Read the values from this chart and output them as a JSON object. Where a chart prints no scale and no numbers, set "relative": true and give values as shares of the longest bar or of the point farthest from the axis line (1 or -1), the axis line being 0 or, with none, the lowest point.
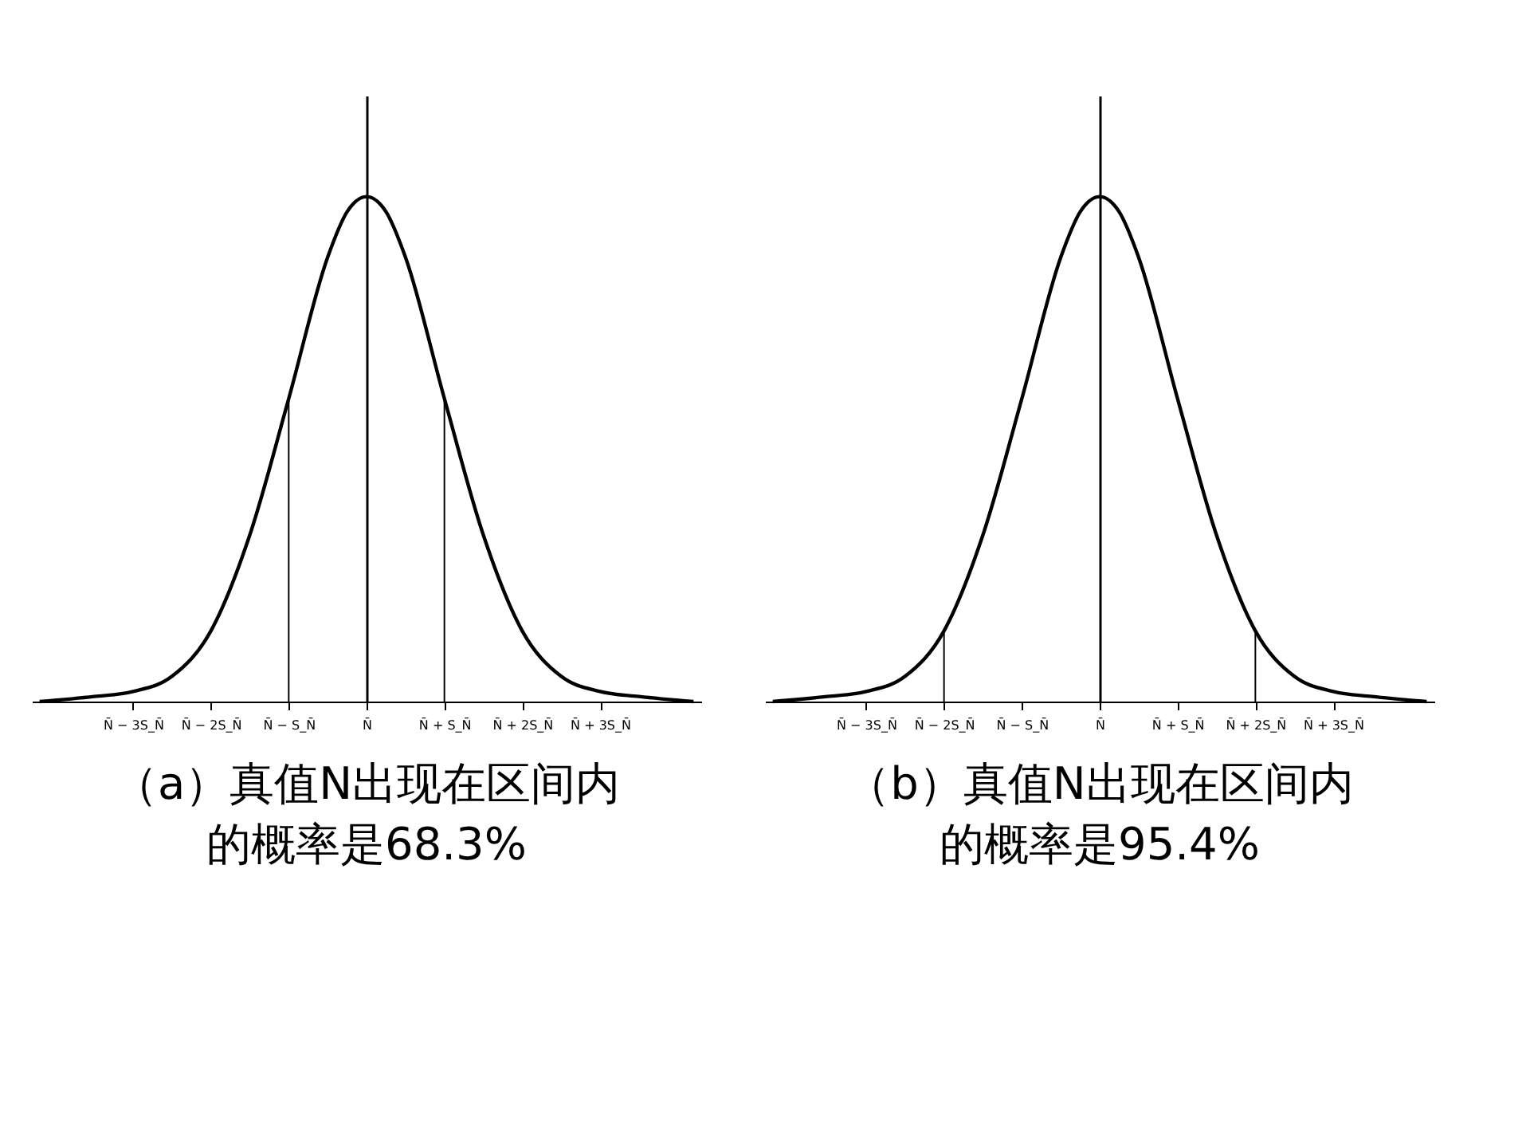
{
  "chart_data": [
    {
      "type": "line",
      "title": "（a）真值N出现在区间内的概率是68.3%",
      "relative": true,
      "x": [
        -4.2,
        -3.5,
        -3,
        -2.5,
        -2,
        -1.5,
        -1,
        -0.5,
        -0.25,
        0,
        0.25,
        0.5,
        1,
        1.5,
        2,
        2.5,
        3,
        3.5,
        4.2
      ],
      "series": [
        {
          "color": "#000000",
          "values": [
            0,
            0.01,
            0.02,
            0.05,
            0.14,
            0.33,
            0.6,
            0.88,
            0.97,
            1,
            0.97,
            0.88,
            0.6,
            0.33,
            0.14,
            0.05,
            0.02,
            0.01,
            0
          ]
        }
      ],
      "xlim": [
        -4.3,
        4.3
      ],
      "xticks": [
        {
          "value": -3,
          "label": "N̄ − 3S_N̄"
        },
        {
          "value": -2,
          "label": "N̄ − 2S_N̄"
        },
        {
          "value": -1,
          "label": "N̄ − S_N̄"
        },
        {
          "value": 0,
          "label": "N̄"
        },
        {
          "value": 1,
          "label": "N̄ + S_N̄"
        },
        {
          "value": 2,
          "label": "N̄ + 2S_N̄"
        },
        {
          "value": 3,
          "label": "N̄ + 3S_N̄"
        }
      ],
      "ref_lines": [
        {
          "axis": "x",
          "value": -1
        },
        {
          "axis": "x",
          "value": 1
        }
      ],
      "marker": "none",
      "line_style": "solid"
    },
    {
      "type": "line",
      "title": "（b）真值N出现在区间内的概率是95.4%",
      "relative": true,
      "x": [
        -4.2,
        -3.5,
        -3,
        -2.5,
        -2,
        -1.5,
        -1,
        -0.5,
        -0.25,
        0,
        0.25,
        0.5,
        1,
        1.5,
        2,
        2.5,
        3,
        3.5,
        4.2
      ],
      "series": [
        {
          "color": "#000000",
          "values": [
            0,
            0.01,
            0.02,
            0.05,
            0.14,
            0.33,
            0.6,
            0.88,
            0.97,
            1,
            0.97,
            0.88,
            0.6,
            0.33,
            0.14,
            0.05,
            0.02,
            0.01,
            0
          ]
        }
      ],
      "xlim": [
        -4.3,
        4.3
      ],
      "xticks": [
        {
          "value": -3,
          "label": "N̄ − 3S_N̄"
        },
        {
          "value": -2,
          "label": "N̄ − 2S_N̄"
        },
        {
          "value": -1,
          "label": "N̄ − S_N̄"
        },
        {
          "value": 0,
          "label": "N̄"
        },
        {
          "value": 1,
          "label": "N̄ + S_N̄"
        },
        {
          "value": 2,
          "label": "N̄ + 2S_N̄"
        },
        {
          "value": 3,
          "label": "N̄ + 3S_N̄"
        }
      ],
      "ref_lines": [
        {
          "axis": "x",
          "value": -2
        },
        {
          "axis": "x",
          "value": 2
        }
      ],
      "marker": "none",
      "line_style": "solid"
    }
  ]
}
